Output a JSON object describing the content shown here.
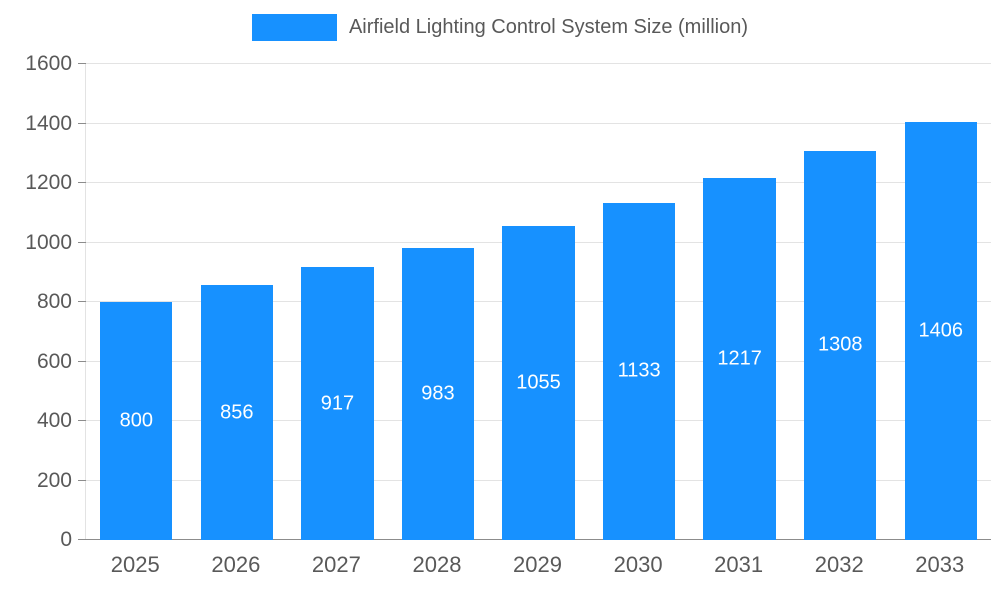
{
  "legend": {
    "label": "Airfield Lighting Control System Size (million)",
    "swatch_color": "#1791ff"
  },
  "chart_data": {
    "type": "bar",
    "title": "Airfield Lighting Control System Size (million)",
    "categories": [
      "2025",
      "2026",
      "2027",
      "2028",
      "2029",
      "2030",
      "2031",
      "2032",
      "2033"
    ],
    "values": [
      800,
      856,
      917,
      983,
      1055,
      1133,
      1217,
      1308,
      1406
    ],
    "xlabel": "",
    "ylabel": "",
    "ylim": [
      0,
      1600
    ],
    "ytick_interval": 200,
    "grid": true,
    "legend_position": "top",
    "bar_color": "#1791ff",
    "value_label_color": "#ffffff",
    "axis_text_color": "#595959"
  }
}
